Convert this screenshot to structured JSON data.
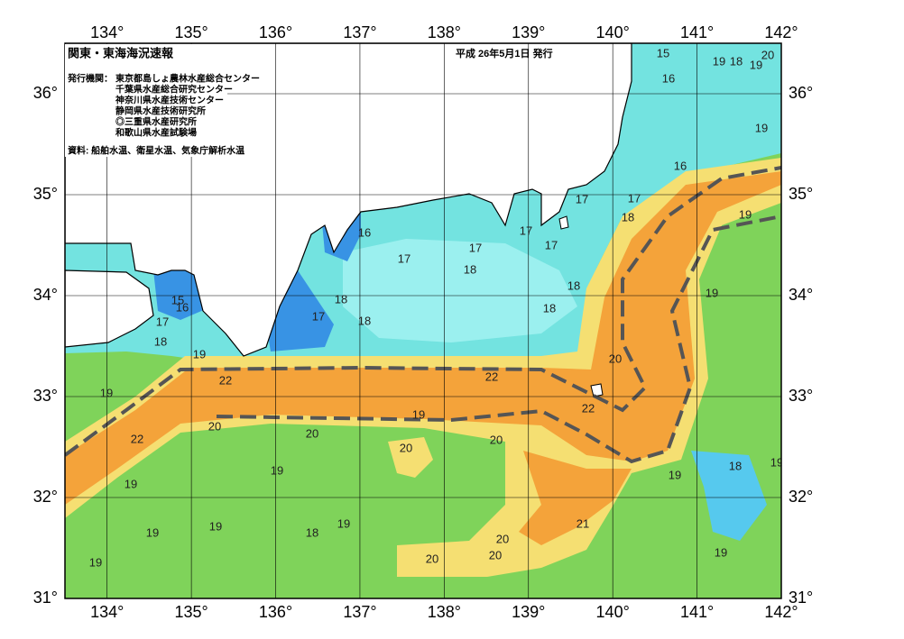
{
  "header": {
    "title": "関東・東海海況速報",
    "date": "平成 26年5月1日 発行",
    "issuer_label": "発行機関：",
    "issuers": [
      "東京都島しょ農林水産総合センター",
      "千葉県水産総合研究センター",
      "神奈川県水産技術センター",
      "静岡県水産技術研究所",
      "◎三重県水産研究所",
      "和歌山県水産試験場"
    ],
    "source": "資料: 船舶水温、衛星水温、気象庁解析水温"
  },
  "map": {
    "xlim": [
      133.5,
      142
    ],
    "ylim": [
      31,
      36.5
    ],
    "xticks": [
      {
        "value": 134,
        "label": "134°"
      },
      {
        "value": 135,
        "label": "135°"
      },
      {
        "value": 136,
        "label": "136°"
      },
      {
        "value": 137,
        "label": "137°"
      },
      {
        "value": 138,
        "label": "138°"
      },
      {
        "value": 139,
        "label": "139°"
      },
      {
        "value": 140,
        "label": "140°"
      },
      {
        "value": 141,
        "label": "141°"
      },
      {
        "value": 142,
        "label": "142°"
      }
    ],
    "yticks": [
      {
        "value": 31,
        "label": "31°"
      },
      {
        "value": 32,
        "label": "32°"
      },
      {
        "value": 33,
        "label": "33°"
      },
      {
        "value": 34,
        "label": "34°"
      },
      {
        "value": 35,
        "label": "35°"
      },
      {
        "value": 36,
        "label": "36°"
      }
    ],
    "grid": true,
    "contour_labels": [
      15,
      19,
      18,
      19,
      20,
      16,
      19,
      16,
      17,
      17,
      18,
      19,
      16,
      17,
      17,
      17,
      17,
      18,
      18,
      19,
      18,
      15,
      16,
      18,
      17,
      18,
      17,
      18,
      19,
      20,
      22,
      22,
      19,
      22,
      19,
      20,
      20,
      22,
      20,
      20,
      19,
      18,
      19,
      19,
      19,
      19,
      19,
      18,
      21,
      20,
      19,
      20,
      20,
      19,
      19
    ]
  }
}
